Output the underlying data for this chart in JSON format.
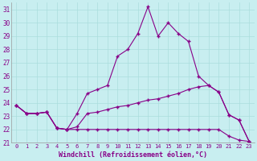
{
  "xlabel": "Windchill (Refroidissement éolien,°C)",
  "background_color": "#c8eef0",
  "line_color": "#880088",
  "grid_color": "#aadddd",
  "xlim": [
    -0.5,
    23.5
  ],
  "ylim": [
    21,
    31.5
  ],
  "xticks": [
    0,
    1,
    2,
    3,
    4,
    5,
    6,
    7,
    8,
    9,
    10,
    11,
    12,
    13,
    14,
    15,
    16,
    17,
    18,
    19,
    20,
    21,
    22,
    23
  ],
  "yticks": [
    21,
    22,
    23,
    24,
    25,
    26,
    27,
    28,
    29,
    30,
    31
  ],
  "line1_x": [
    0,
    1,
    2,
    3,
    4,
    5,
    6,
    7,
    8,
    9,
    10,
    11,
    12,
    13,
    14,
    15,
    16,
    17,
    18,
    19,
    20,
    21,
    22,
    23
  ],
  "line1_y": [
    23.8,
    23.2,
    23.2,
    23.3,
    22.1,
    22.0,
    23.2,
    24.7,
    25.0,
    25.3,
    27.5,
    28.0,
    29.2,
    31.2,
    29.0,
    30.0,
    29.2,
    28.6,
    26.0,
    25.3,
    24.8,
    23.1,
    22.7,
    21.1
  ],
  "line2_x": [
    0,
    1,
    2,
    3,
    4,
    5,
    6,
    7,
    8,
    9,
    10,
    11,
    12,
    13,
    14,
    15,
    16,
    17,
    18,
    19,
    20,
    21,
    22,
    23
  ],
  "line2_y": [
    23.8,
    23.2,
    23.2,
    23.3,
    22.1,
    22.0,
    22.2,
    23.2,
    23.3,
    23.5,
    23.7,
    23.8,
    24.0,
    24.2,
    24.3,
    24.5,
    24.7,
    25.0,
    25.2,
    25.3,
    24.8,
    23.1,
    22.7,
    21.1
  ],
  "line3_x": [
    0,
    1,
    2,
    3,
    4,
    5,
    6,
    7,
    8,
    9,
    10,
    11,
    12,
    13,
    14,
    15,
    16,
    17,
    18,
    19,
    20,
    21,
    22,
    23
  ],
  "line3_y": [
    23.8,
    23.2,
    23.2,
    23.3,
    22.1,
    22.0,
    22.0,
    22.0,
    22.0,
    22.0,
    22.0,
    22.0,
    22.0,
    22.0,
    22.0,
    22.0,
    22.0,
    22.0,
    22.0,
    22.0,
    22.0,
    21.5,
    21.2,
    21.1
  ]
}
